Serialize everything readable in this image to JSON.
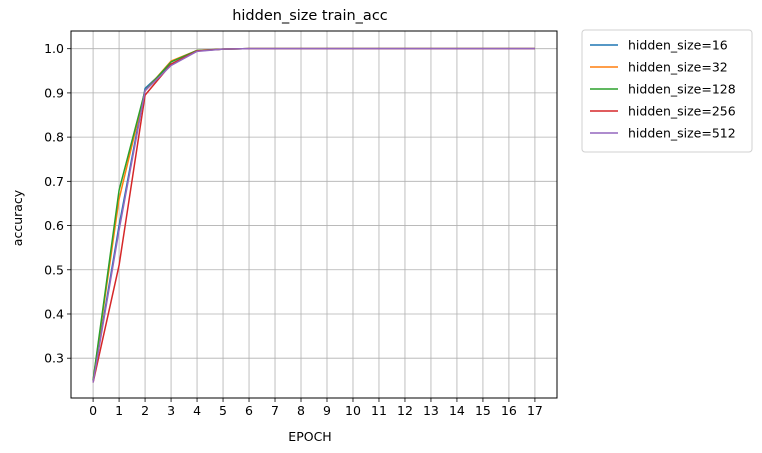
{
  "chart_data": {
    "type": "line",
    "title": "hidden_size train_acc",
    "xlabel": "EPOCH",
    "ylabel": "accuracy",
    "x": [
      0,
      1,
      2,
      3,
      4,
      5,
      6,
      7,
      8,
      9,
      10,
      11,
      12,
      13,
      14,
      15,
      16,
      17
    ],
    "xlim": [
      -0.85,
      17.85
    ],
    "ylim": [
      0.21,
      1.04
    ],
    "yticks": [
      0.3,
      0.4,
      0.5,
      0.6,
      0.7,
      0.8,
      0.9,
      1.0
    ],
    "ytick_labels": [
      "0.3",
      "0.4",
      "0.5",
      "0.6",
      "0.7",
      "0.8",
      "0.9",
      "1.0"
    ],
    "grid": true,
    "legend_position": "outside-top-right",
    "series": [
      {
        "name": "hidden_size=16",
        "color": "#1f77b4",
        "values": [
          0.25,
          0.6,
          0.91,
          0.965,
          0.995,
          0.999,
          1.0,
          1.0,
          1.0,
          1.0,
          1.0,
          1.0,
          1.0,
          1.0,
          1.0,
          1.0,
          1.0,
          1.0
        ]
      },
      {
        "name": "hidden_size=32",
        "color": "#ff7f0e",
        "values": [
          0.25,
          0.66,
          0.905,
          0.972,
          0.996,
          0.999,
          1.0,
          1.0,
          1.0,
          1.0,
          1.0,
          1.0,
          1.0,
          1.0,
          1.0,
          1.0,
          1.0,
          1.0
        ]
      },
      {
        "name": "hidden_size=128",
        "color": "#2ca02c",
        "values": [
          0.25,
          0.68,
          0.905,
          0.97,
          0.996,
          0.999,
          1.0,
          1.0,
          1.0,
          1.0,
          1.0,
          1.0,
          1.0,
          1.0,
          1.0,
          1.0,
          1.0,
          1.0
        ]
      },
      {
        "name": "hidden_size=256",
        "color": "#d62728",
        "values": [
          0.245,
          0.51,
          0.895,
          0.965,
          0.995,
          0.999,
          1.0,
          1.0,
          1.0,
          1.0,
          1.0,
          1.0,
          1.0,
          1.0,
          1.0,
          1.0,
          1.0,
          1.0
        ]
      },
      {
        "name": "hidden_size=512",
        "color": "#9467bd",
        "values": [
          0.245,
          0.59,
          0.905,
          0.962,
          0.994,
          0.999,
          1.0,
          1.0,
          1.0,
          1.0,
          1.0,
          1.0,
          1.0,
          1.0,
          1.0,
          1.0,
          1.0,
          1.0
        ]
      }
    ]
  }
}
